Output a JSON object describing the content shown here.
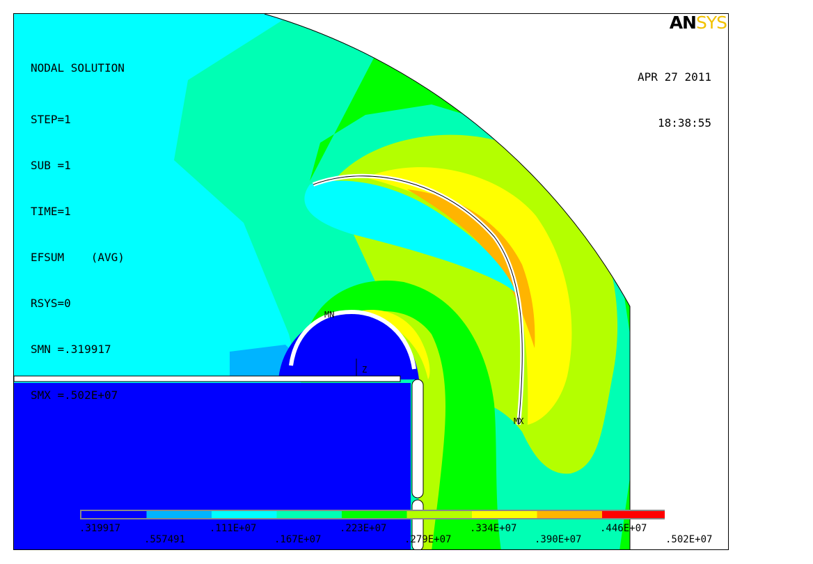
{
  "header": {
    "lines": [
      "NODAL SOLUTION",
      "STEP=1",
      "SUB =1",
      "TIME=1",
      "EFSUM    (AVG)",
      "RSYS=0",
      "SMN =.319917",
      "SMX =.502E+07"
    ],
    "date": "APR 27 2011",
    "time": "18:38:55",
    "logo_part1": "AN",
    "logo_part2": "SYS"
  },
  "markers": {
    "min": "MN",
    "max": "MX",
    "axis": "Z"
  },
  "legend": {
    "colors": [
      "#0000ff",
      "#00b4ff",
      "#00ffff",
      "#00ffb4",
      "#00ff00",
      "#b4ff00",
      "#ffff00",
      "#ffb400",
      "#ff0000"
    ],
    "labels": [
      ".319917",
      ".557491",
      ".111E+07",
      ".167E+07",
      ".223E+07",
      ".279E+07",
      ".334E+07",
      ".390E+07",
      ".446E+07",
      ".502E+07"
    ]
  },
  "colors": {
    "blue": "#0000ff",
    "lightblue": "#00b4ff",
    "cyan": "#00ffff",
    "aqua": "#00ffb4",
    "green": "#00ff00",
    "lime": "#b4ff00",
    "yellow": "#ffff00",
    "orange": "#ffb400",
    "red": "#ff0000"
  }
}
